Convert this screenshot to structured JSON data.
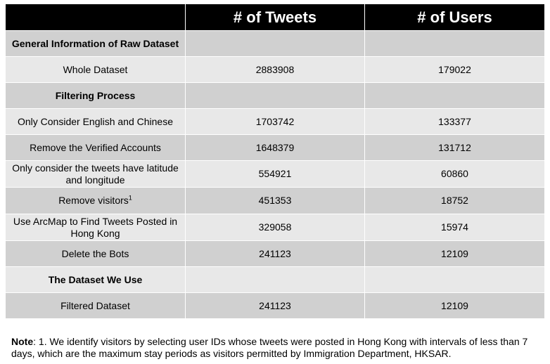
{
  "table": {
    "headers": [
      "",
      "# of Tweets",
      "# of Users"
    ],
    "rows": [
      {
        "label": "General Information of Raw Dataset",
        "tweets": "",
        "users": "",
        "section": true,
        "shade": "dark"
      },
      {
        "label": "Whole Dataset",
        "tweets": "2883908",
        "users": "179022",
        "section": false,
        "shade": "light"
      },
      {
        "label": "Filtering Process",
        "tweets": "",
        "users": "",
        "section": true,
        "shade": "dark"
      },
      {
        "label": "Only Consider English and Chinese",
        "tweets": "1703742",
        "users": "133377",
        "section": false,
        "shade": "light"
      },
      {
        "label": "Remove the Verified Accounts",
        "tweets": "1648379",
        "users": "131712",
        "section": false,
        "shade": "dark"
      },
      {
        "label": "Only consider the tweets have latitude and longitude",
        "tweets": "554921",
        "users": "60860",
        "section": false,
        "shade": "light"
      },
      {
        "label": "Remove visitors",
        "sup": "1",
        "tweets": "451353",
        "users": "18752",
        "section": false,
        "shade": "dark"
      },
      {
        "label": "Use ArcMap to Find Tweets Posted in Hong Kong",
        "tweets": "329058",
        "users": "15974",
        "section": false,
        "shade": "light"
      },
      {
        "label": "Delete the Bots",
        "tweets": "241123",
        "users": "12109",
        "section": false,
        "shade": "dark"
      },
      {
        "label": "The Dataset We Use",
        "tweets": "",
        "users": "",
        "section": true,
        "shade": "light"
      },
      {
        "label": "Filtered Dataset",
        "tweets": "241123",
        "users": "12109",
        "section": false,
        "shade": "dark"
      }
    ]
  },
  "note": {
    "label": "Note",
    "text": ": 1. We identify visitors by selecting user IDs whose tweets were posted in Hong Kong with intervals of less than 7 days, which are the maximum stay periods as visitors permitted by Immigration Department, HKSAR."
  }
}
